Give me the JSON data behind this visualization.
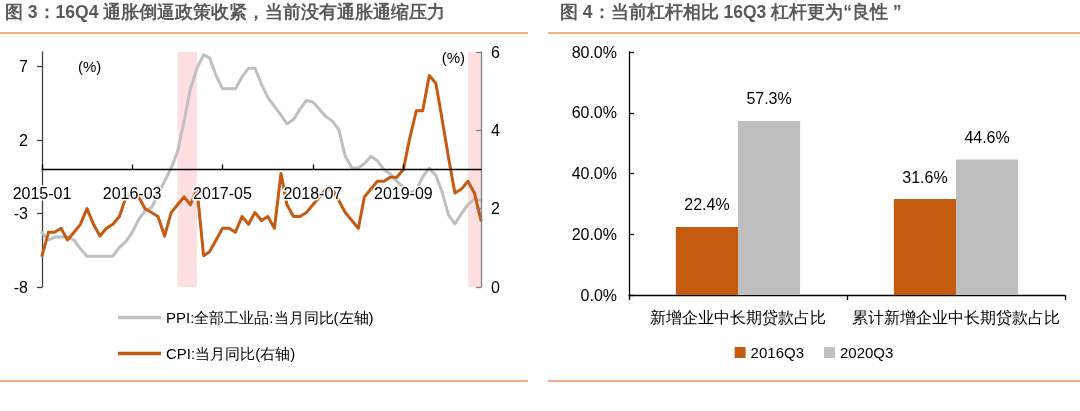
{
  "chart_data": [
    {
      "type": "line",
      "title": "图 3：16Q4 通胀倒逼政策收紧，当前没有通胀通缩压力",
      "ylabel": "(%)",
      "y2label": "(%)",
      "x": [
        "2015-01",
        "2015-02",
        "2015-03",
        "2015-04",
        "2015-05",
        "2015-06",
        "2015-07",
        "2015-08",
        "2015-09",
        "2015-10",
        "2015-11",
        "2015-12",
        "2016-01",
        "2016-02",
        "2016-03",
        "2016-04",
        "2016-05",
        "2016-06",
        "2016-07",
        "2016-08",
        "2016-09",
        "2016-10",
        "2016-11",
        "2016-12",
        "2017-01",
        "2017-02",
        "2017-03",
        "2017-04",
        "2017-05",
        "2017-06",
        "2017-07",
        "2017-08",
        "2017-09",
        "2017-10",
        "2017-11",
        "2017-12",
        "2018-01",
        "2018-02",
        "2018-03",
        "2018-04",
        "2018-05",
        "2018-06",
        "2018-07",
        "2018-08",
        "2018-09",
        "2018-10",
        "2018-11",
        "2018-12",
        "2019-01",
        "2019-02",
        "2019-03",
        "2019-04",
        "2019-05",
        "2019-06",
        "2019-07",
        "2019-08",
        "2019-09",
        "2019-10",
        "2019-11",
        "2019-12",
        "2020-01",
        "2020-02",
        "2020-03",
        "2020-04",
        "2020-05",
        "2020-06",
        "2020-07",
        "2020-08",
        "2020-09"
      ],
      "xlim": [
        "2015-01",
        "2020-09"
      ],
      "xticks": [
        "2015-01",
        "2016-03",
        "2017-05",
        "2018-07",
        "2019-09"
      ],
      "ylim": [
        -8,
        8
      ],
      "yticks": [
        -8,
        -3,
        2,
        7
      ],
      "y2lim": [
        0,
        6
      ],
      "y2ticks": [
        0,
        2,
        4,
        6
      ],
      "series": [
        {
          "name": "PPI:全部工业品:当月同比(左轴)",
          "color": "#bfbfbf",
          "values": [
            -4.3,
            -4.8,
            -4.6,
            -4.6,
            -4.6,
            -4.8,
            -5.4,
            -5.9,
            -5.9,
            -5.9,
            -5.9,
            -5.9,
            -5.3,
            -4.9,
            -4.3,
            -3.4,
            -2.8,
            -2.6,
            -1.7,
            -0.8,
            0.1,
            1.2,
            3.3,
            5.5,
            6.9,
            7.8,
            7.6,
            6.4,
            5.5,
            5.5,
            5.5,
            6.3,
            6.9,
            6.9,
            5.8,
            4.9,
            4.3,
            3.7,
            3.1,
            3.4,
            4.1,
            4.7,
            4.6,
            4.1,
            3.6,
            3.3,
            2.7,
            0.9,
            0.1,
            0.1,
            0.4,
            0.9,
            0.6,
            0.0,
            -0.3,
            -0.8,
            -1.2,
            -1.6,
            -1.4,
            -0.5,
            0.1,
            -0.4,
            -1.5,
            -3.1,
            -3.7,
            -3.0,
            -2.4,
            -2.0,
            -2.1
          ]
        },
        {
          "name": "CPI:当月同比(右轴)",
          "color": "#c55a11",
          "axis": "y2",
          "values": [
            0.8,
            1.4,
            1.4,
            1.5,
            1.2,
            1.4,
            1.6,
            2.0,
            1.6,
            1.3,
            1.5,
            1.6,
            1.8,
            2.3,
            2.3,
            2.3,
            2.0,
            1.9,
            1.8,
            1.3,
            1.9,
            2.1,
            2.3,
            2.1,
            2.5,
            0.8,
            0.9,
            1.2,
            1.5,
            1.5,
            1.4,
            1.8,
            1.6,
            1.9,
            1.7,
            1.8,
            1.5,
            2.9,
            2.1,
            1.8,
            1.8,
            1.9,
            2.1,
            2.3,
            2.5,
            2.5,
            2.2,
            1.9,
            1.7,
            1.5,
            2.3,
            2.5,
            2.7,
            2.7,
            2.8,
            2.8,
            3.0,
            3.8,
            4.5,
            4.5,
            5.4,
            5.2,
            4.3,
            3.3,
            2.4,
            2.5,
            2.7,
            2.4,
            1.7
          ]
        }
      ],
      "bands": [
        {
          "axis": "x",
          "from": "2016-10",
          "to": "2017-01",
          "color": "#fddfe0"
        },
        {
          "axis": "x",
          "from": "2020-07",
          "to": "2020-09",
          "color": "#fddfe0"
        }
      ],
      "legend": "bottom"
    },
    {
      "type": "bar",
      "title": "图 4：当前杠杆相比 16Q3 杠杆更为“良性 ”",
      "categories": [
        "新增企业中长期贷款占比",
        "累计新增企业中长期贷款占比"
      ],
      "series": [
        {
          "name": "2016Q3",
          "color": "#c55a11",
          "values": [
            22.4,
            31.6
          ],
          "value_labels": [
            "22.4%",
            "31.6%"
          ]
        },
        {
          "name": "2020Q3",
          "color": "#bfbfbf",
          "values": [
            57.3,
            44.6
          ],
          "value_labels": [
            "57.3%",
            "44.6%"
          ]
        }
      ],
      "ylim": [
        0,
        80
      ],
      "yticks": [
        {
          "value": 0,
          "label": "0.0%"
        },
        {
          "value": 20,
          "label": "20.0%"
        },
        {
          "value": 40,
          "label": "40.0%"
        },
        {
          "value": 60,
          "label": "60.0%"
        },
        {
          "value": 80,
          "label": "80.0%"
        }
      ],
      "legend": "bottom"
    }
  ]
}
